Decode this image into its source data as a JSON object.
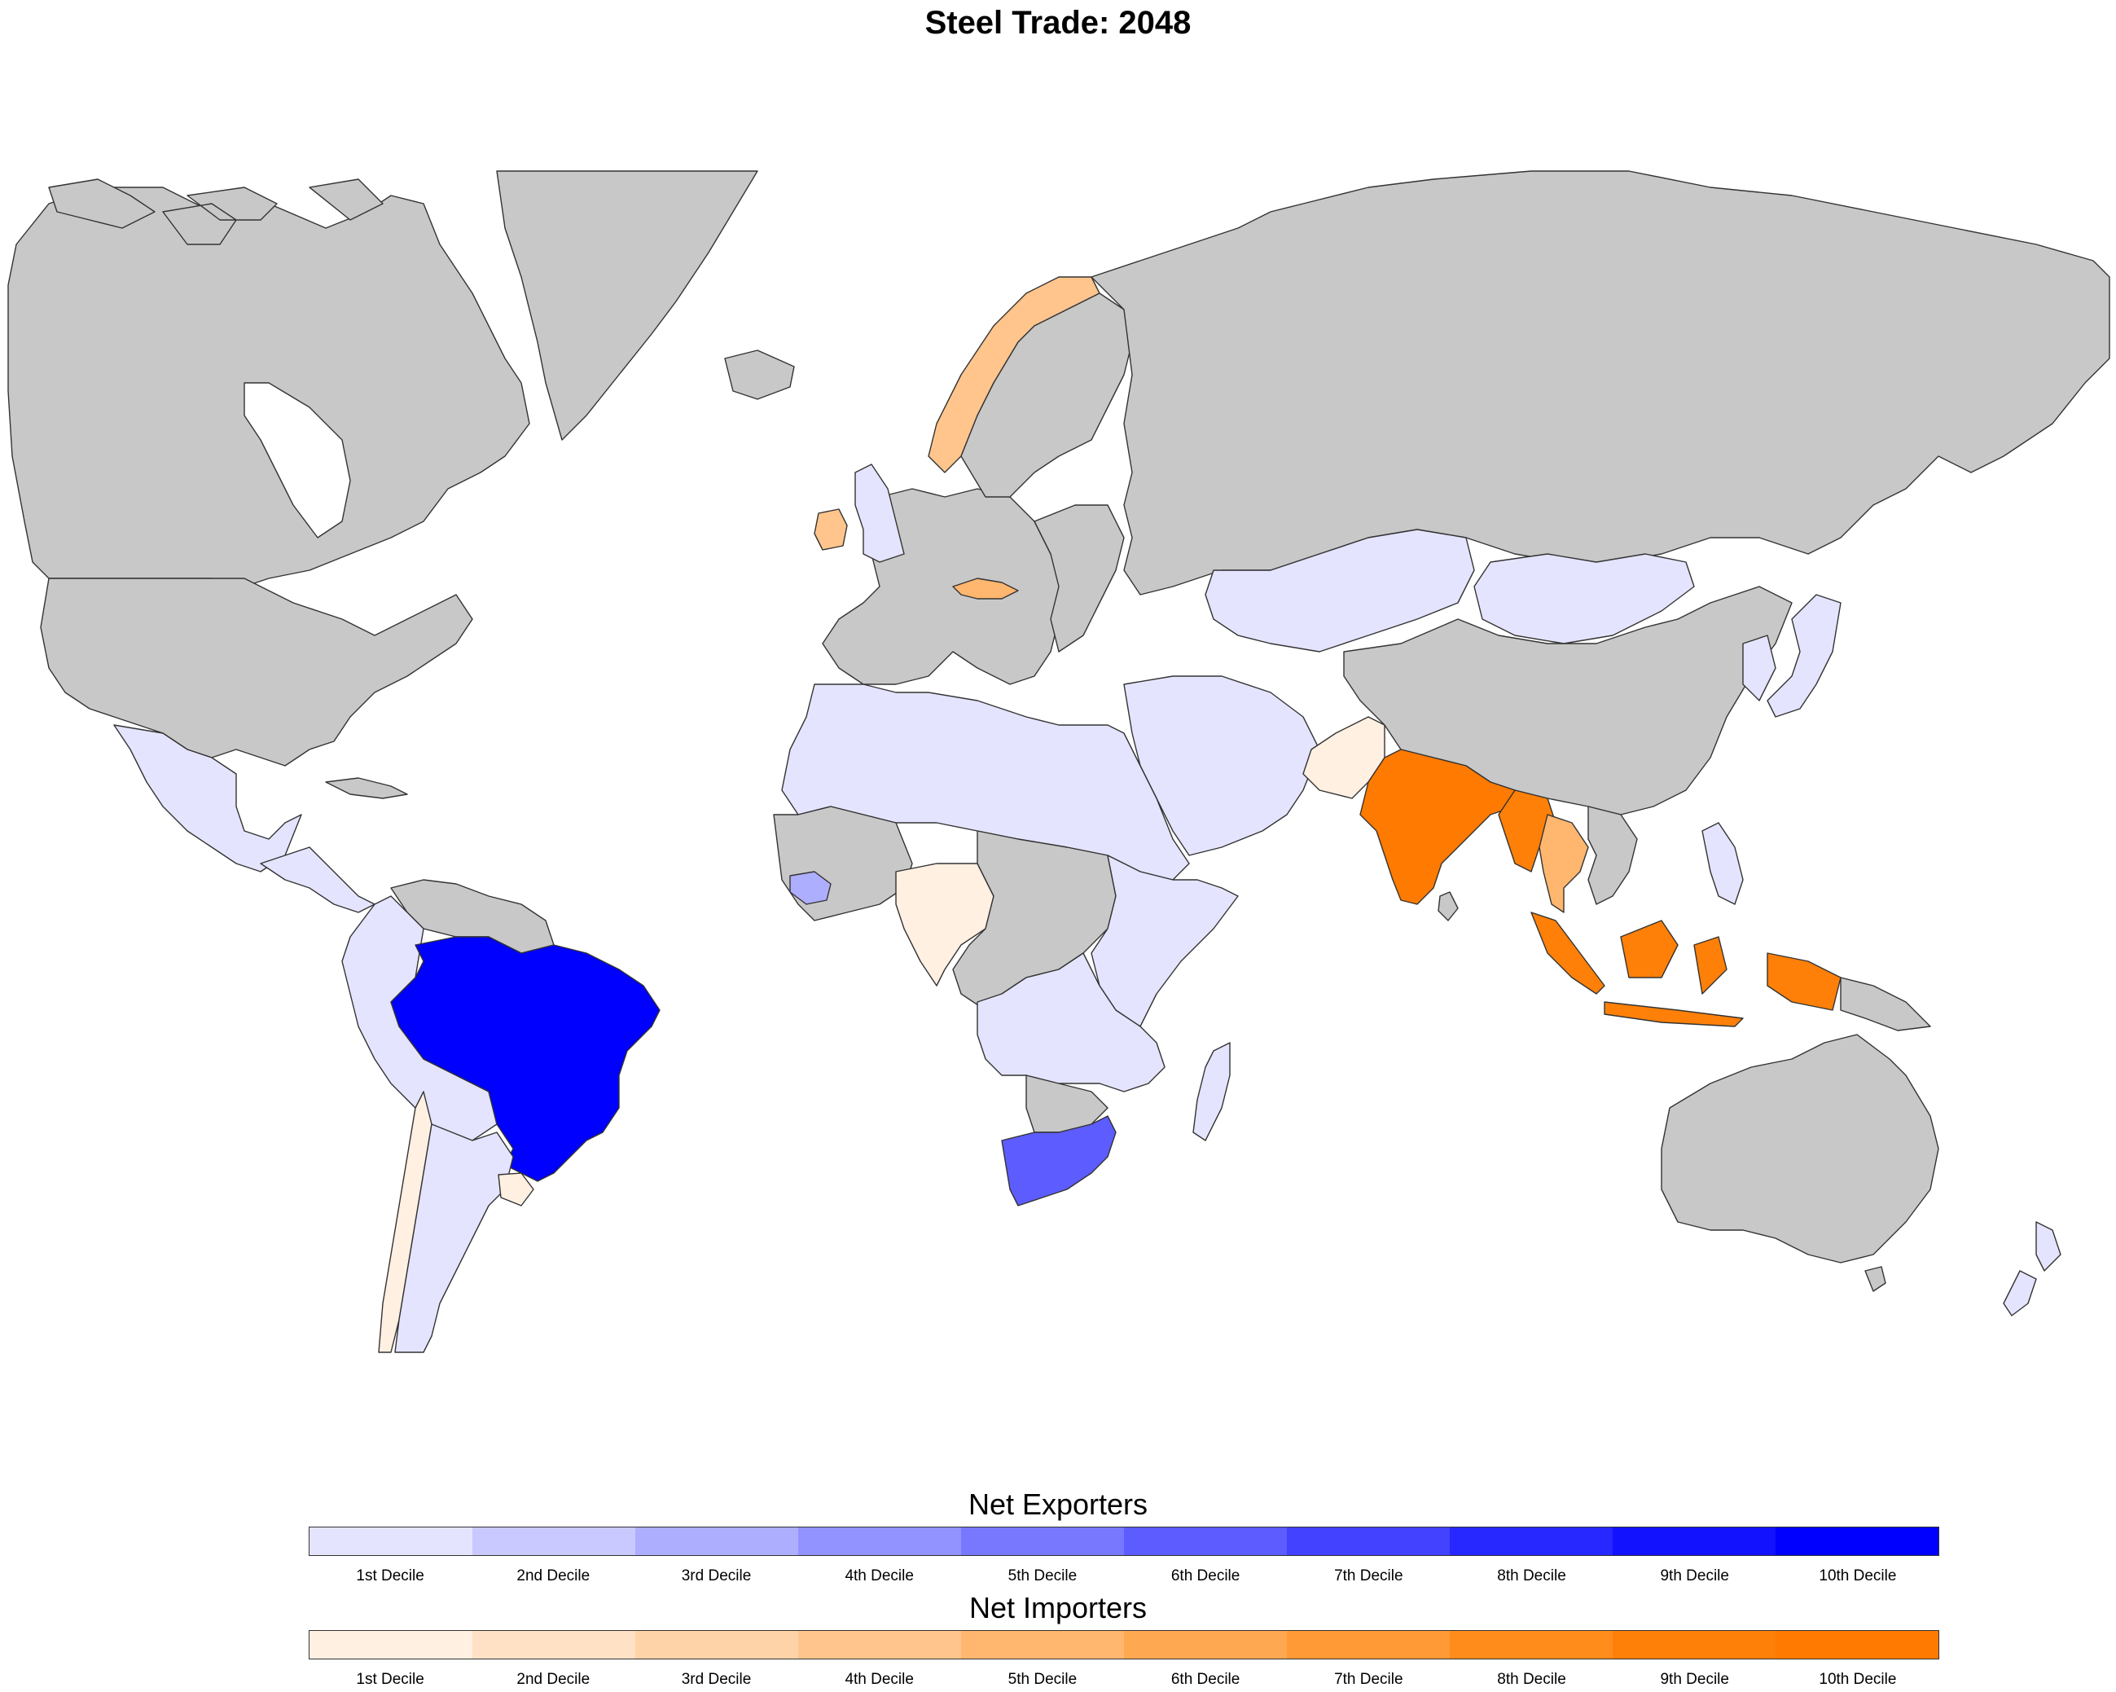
{
  "title": "Steel Trade: 2048",
  "colors": {
    "no_data": "#c8c8c8",
    "ocean": "#ffffff",
    "border": "#333333",
    "exporters": [
      "#e4e4ff",
      "#c9c9ff",
      "#aeaeff",
      "#9393ff",
      "#7878ff",
      "#5d5dff",
      "#4242ff",
      "#2727ff",
      "#1212ff",
      "#0000ff"
    ],
    "importers": [
      "#fff0e2",
      "#ffe2c5",
      "#ffd3a8",
      "#ffc58c",
      "#ffb66f",
      "#ffa852",
      "#ff9a36",
      "#ff8c1b",
      "#ff8008",
      "#ff7a00"
    ]
  },
  "legend": {
    "exporters_title": "Net Exporters",
    "importers_title": "Net Importers",
    "decile_labels": [
      "1st Decile",
      "2nd Decile",
      "3rd Decile",
      "4th Decile",
      "5th Decile",
      "6th Decile",
      "7th Decile",
      "8th Decile",
      "9th Decile",
      "10th Decile"
    ]
  },
  "regions": [
    {
      "name": "canada",
      "class": "none"
    },
    {
      "name": "greenland",
      "class": "none"
    },
    {
      "name": "united-states",
      "class": "none"
    },
    {
      "name": "mexico",
      "class": "exp1"
    },
    {
      "name": "central-america",
      "class": "exp1"
    },
    {
      "name": "colombia-peru-bolivia",
      "class": "exp1"
    },
    {
      "name": "venezuela-guianas",
      "class": "none"
    },
    {
      "name": "brazil",
      "class": "exp10"
    },
    {
      "name": "chile",
      "class": "imp1"
    },
    {
      "name": "argentina",
      "class": "exp1"
    },
    {
      "name": "uruguay",
      "class": "imp1"
    },
    {
      "name": "western-europe",
      "class": "none"
    },
    {
      "name": "united-kingdom",
      "class": "exp1"
    },
    {
      "name": "ireland",
      "class": "imp4"
    },
    {
      "name": "norway",
      "class": "imp4"
    },
    {
      "name": "sweden-finland",
      "class": "none"
    },
    {
      "name": "austria",
      "class": "imp5"
    },
    {
      "name": "russia",
      "class": "none"
    },
    {
      "name": "kazakhstan",
      "class": "exp1"
    },
    {
      "name": "mongolia",
      "class": "exp1"
    },
    {
      "name": "china",
      "class": "none"
    },
    {
      "name": "middle-east",
      "class": "exp1"
    },
    {
      "name": "pakistan",
      "class": "imp1"
    },
    {
      "name": "india",
      "class": "imp10"
    },
    {
      "name": "bangladesh-myanmar",
      "class": "imp9"
    },
    {
      "name": "thailand",
      "class": "imp5"
    },
    {
      "name": "indochina",
      "class": "none"
    },
    {
      "name": "philippines",
      "class": "exp1"
    },
    {
      "name": "japan-korea",
      "class": "exp1"
    },
    {
      "name": "indonesia",
      "class": "imp9"
    },
    {
      "name": "papua-new-guinea",
      "class": "none"
    },
    {
      "name": "north-africa",
      "class": "exp1"
    },
    {
      "name": "west-africa",
      "class": "none"
    },
    {
      "name": "guinea",
      "class": "exp3"
    },
    {
      "name": "nigeria",
      "class": "imp1"
    },
    {
      "name": "central-africa",
      "class": "none"
    },
    {
      "name": "east-africa",
      "class": "exp1"
    },
    {
      "name": "southern-africa",
      "class": "exp1"
    },
    {
      "name": "namibia-botswana",
      "class": "none"
    },
    {
      "name": "south-africa",
      "class": "exp6"
    },
    {
      "name": "madagascar",
      "class": "exp1"
    },
    {
      "name": "australia",
      "class": "none"
    },
    {
      "name": "new-zealand",
      "class": "exp1"
    },
    {
      "name": "iceland",
      "class": "none"
    }
  ]
}
